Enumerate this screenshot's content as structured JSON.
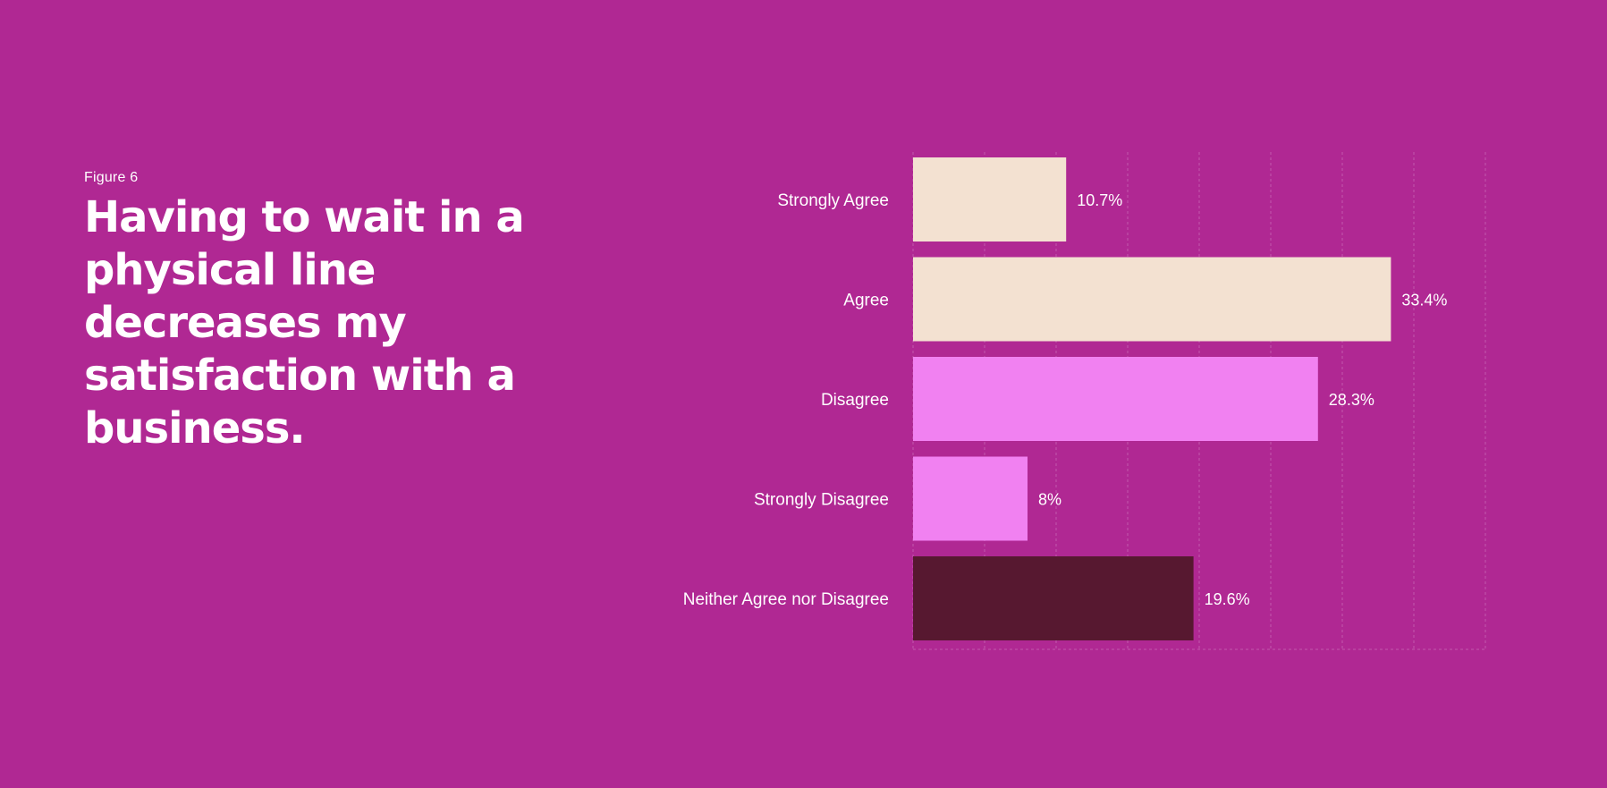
{
  "figure_label": "Figure 6",
  "headline": "Having to wait in a physical line decreases my satisfaction with a business.",
  "colors": {
    "background": "#B02893",
    "agree": "#F3E1D1",
    "disagree": "#F181F1",
    "neutral": "#571830"
  },
  "chart_data": {
    "type": "bar",
    "orientation": "horizontal",
    "categories": [
      "Strongly Agree",
      "Agree",
      "Disagree",
      "Strongly Disagree",
      "Neither Agree nor Disagree"
    ],
    "values": [
      10.7,
      33.4,
      28.3,
      8,
      19.6
    ],
    "value_labels": [
      "10.7%",
      "33.4%",
      "28.3%",
      "8%",
      "19.6%"
    ],
    "bar_colors": [
      "#F3E1D1",
      "#F3E1D1",
      "#F181F1",
      "#F181F1",
      "#571830"
    ],
    "title": "Having to wait in a physical line decreases my satisfaction with a business.",
    "xlabel": "",
    "ylabel": "",
    "xlim": [
      0,
      40
    ],
    "grid": true
  }
}
